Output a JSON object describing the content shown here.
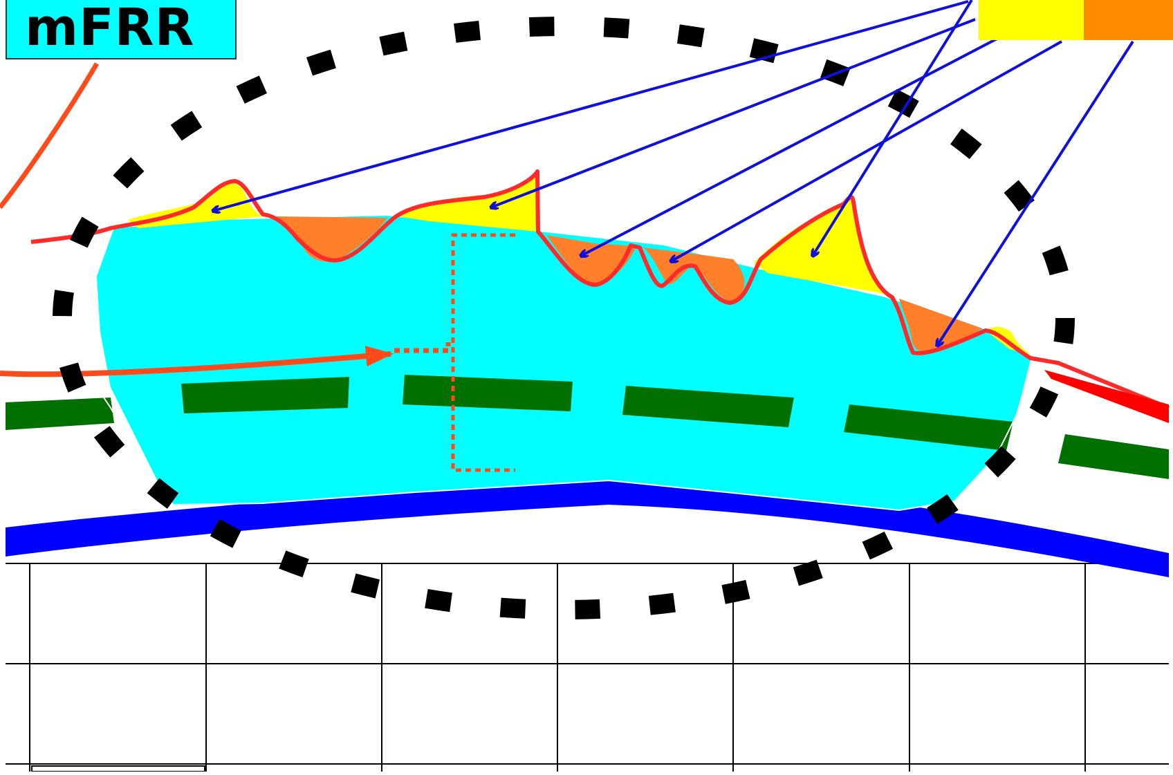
{
  "title": {
    "label": "mFRR"
  },
  "colors": {
    "title_background": "#00ffff",
    "region_fill": "#00ffff",
    "positive_deviation": "#ffff00",
    "negative_deviation": "#ff7f2a",
    "signal_outline": "#ff2a2a",
    "arrow_lines": "#1010dd",
    "dashed_line": "#007000",
    "lower_band": "#0000ff",
    "incoming_signal": "#ff4a1a",
    "dotted_ellipse": "#000000",
    "grid": "#000000"
  },
  "legend": {
    "swatches": [
      {
        "name": "positive-deviation-swatch",
        "color": "#ffff00"
      },
      {
        "name": "negative-deviation-swatch",
        "color": "#ff8c00"
      }
    ]
  }
}
